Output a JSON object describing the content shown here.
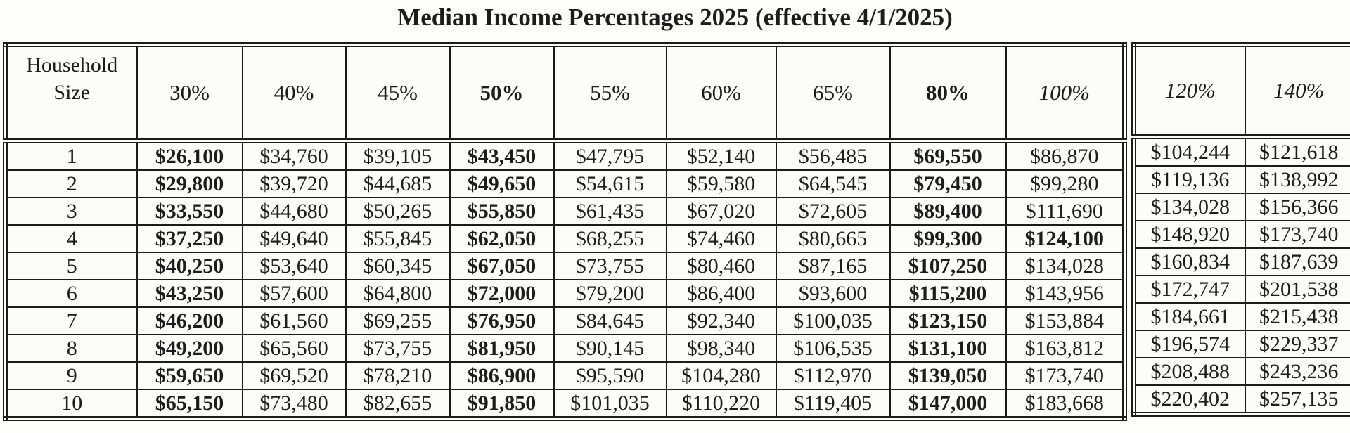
{
  "title": "Median Income Percentages 2025 (effective 4/1/2025)",
  "table": {
    "corner_header_line1": "Household",
    "corner_header_line2": "Size",
    "main_columns": [
      {
        "label": "30%",
        "emphasis": "regular"
      },
      {
        "label": "40%",
        "emphasis": "regular"
      },
      {
        "label": "45%",
        "emphasis": "regular"
      },
      {
        "label": "50%",
        "emphasis": "bold"
      },
      {
        "label": "55%",
        "emphasis": "regular"
      },
      {
        "label": "60%",
        "emphasis": "regular"
      },
      {
        "label": "65%",
        "emphasis": "regular"
      },
      {
        "label": "80%",
        "emphasis": "bold"
      },
      {
        "label": "100%",
        "emphasis": "italic"
      }
    ],
    "side_columns": [
      {
        "label": "120%",
        "emphasis": "italic"
      },
      {
        "label": "140%",
        "emphasis": "italic"
      }
    ],
    "bold_value_columns": [
      0,
      3,
      7
    ],
    "extra_bold_cells": [
      [
        3,
        8
      ]
    ],
    "rows": [
      {
        "household_size": "1",
        "values": [
          "$26,100",
          "$34,760",
          "$39,105",
          "$43,450",
          "$47,795",
          "$52,140",
          "$56,485",
          "$69,550",
          "$86,870"
        ],
        "side_values": [
          "$104,244",
          "$121,618"
        ]
      },
      {
        "household_size": "2",
        "values": [
          "$29,800",
          "$39,720",
          "$44,685",
          "$49,650",
          "$54,615",
          "$59,580",
          "$64,545",
          "$79,450",
          "$99,280"
        ],
        "side_values": [
          "$119,136",
          "$138,992"
        ]
      },
      {
        "household_size": "3",
        "values": [
          "$33,550",
          "$44,680",
          "$50,265",
          "$55,850",
          "$61,435",
          "$67,020",
          "$72,605",
          "$89,400",
          "$111,690"
        ],
        "side_values": [
          "$134,028",
          "$156,366"
        ]
      },
      {
        "household_size": "4",
        "values": [
          "$37,250",
          "$49,640",
          "$55,845",
          "$62,050",
          "$68,255",
          "$74,460",
          "$80,665",
          "$99,300",
          "$124,100"
        ],
        "side_values": [
          "$148,920",
          "$173,740"
        ]
      },
      {
        "household_size": "5",
        "values": [
          "$40,250",
          "$53,640",
          "$60,345",
          "$67,050",
          "$73,755",
          "$80,460",
          "$87,165",
          "$107,250",
          "$134,028"
        ],
        "side_values": [
          "$160,834",
          "$187,639"
        ]
      },
      {
        "household_size": "6",
        "values": [
          "$43,250",
          "$57,600",
          "$64,800",
          "$72,000",
          "$79,200",
          "$86,400",
          "$93,600",
          "$115,200",
          "$143,956"
        ],
        "side_values": [
          "$172,747",
          "$201,538"
        ]
      },
      {
        "household_size": "7",
        "values": [
          "$46,200",
          "$61,560",
          "$69,255",
          "$76,950",
          "$84,645",
          "$92,340",
          "$100,035",
          "$123,150",
          "$153,884"
        ],
        "side_values": [
          "$184,661",
          "$215,438"
        ]
      },
      {
        "household_size": "8",
        "values": [
          "$49,200",
          "$65,560",
          "$73,755",
          "$81,950",
          "$90,145",
          "$98,340",
          "$106,535",
          "$131,100",
          "$163,812"
        ],
        "side_values": [
          "$196,574",
          "$229,337"
        ]
      },
      {
        "household_size": "9",
        "values": [
          "$59,650",
          "$69,520",
          "$78,210",
          "$86,900",
          "$95,590",
          "$104,280",
          "$112,970",
          "$139,050",
          "$173,740"
        ],
        "side_values": [
          "$208,488",
          "$243,236"
        ]
      },
      {
        "household_size": "10",
        "values": [
          "$65,150",
          "$73,480",
          "$82,655",
          "$91,850",
          "$101,035",
          "$110,220",
          "$119,405",
          "$147,000",
          "$183,668"
        ],
        "side_values": [
          "$220,402",
          "$257,135"
        ]
      }
    ],
    "colors": {
      "text": "#1c1c1c",
      "border": "#1c1c1c",
      "background": "#fdfdfc"
    }
  }
}
